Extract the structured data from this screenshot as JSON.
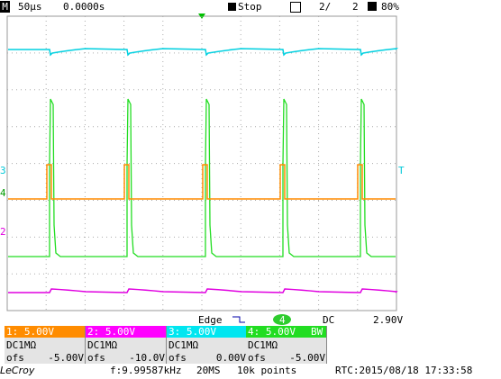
{
  "header": {
    "mode": "M",
    "timebase": "50µs",
    "delay": "0.0000s",
    "state": "Stop",
    "acq": "2/",
    "acq_total": "2",
    "zoom": "80%"
  },
  "markers": {
    "ch3": "3",
    "ch4": "4",
    "ch2": "2",
    "trigger": "T"
  },
  "trigger": {
    "type": "Edge",
    "source": "4",
    "coupling": "DC",
    "level": "2.90V"
  },
  "channels": [
    {
      "label": "1: 5.00V",
      "coupling": "DC1MΩ",
      "offset_label": "ofs",
      "offset": "-5.00V"
    },
    {
      "label": "2: 5.00V",
      "coupling": "DC1MΩ",
      "offset_label": "ofs",
      "offset": "-10.0V"
    },
    {
      "label": "3: 5.00V",
      "coupling": "DC1MΩ",
      "offset_label": "ofs",
      "offset": "0.00V"
    },
    {
      "label": "4: 5.00V",
      "bw": "BW",
      "coupling": "DC1MΩ",
      "offset_label": "ofs",
      "offset": "-5.00V"
    }
  ],
  "footer": {
    "brand": "LeCroy",
    "frequency": "f:9.99587kHz",
    "sample_rate": "20MS",
    "points": "10k points",
    "rtc": "RTC:2015/08/18 17:33:58"
  }
}
